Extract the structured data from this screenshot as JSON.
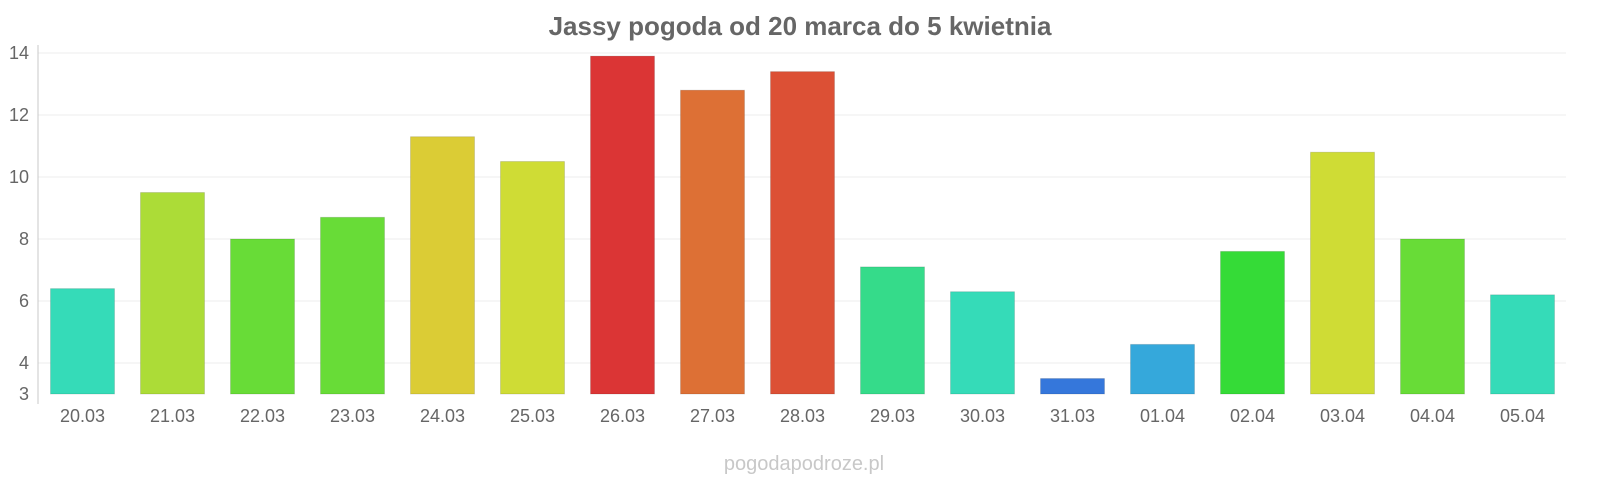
{
  "chart_data": {
    "type": "bar",
    "title": "Jassy pogoda od 20 marca do 5 kwietnia",
    "categories": [
      "20.03",
      "21.03",
      "22.03",
      "23.03",
      "24.03",
      "25.03",
      "26.03",
      "27.03",
      "28.03",
      "29.03",
      "30.03",
      "31.03",
      "01.04",
      "02.04",
      "03.04",
      "04.04",
      "05.04"
    ],
    "values": [
      6.4,
      9.5,
      8.0,
      8.7,
      11.3,
      10.5,
      13.9,
      12.8,
      13.4,
      7.1,
      6.3,
      3.5,
      4.6,
      7.6,
      10.8,
      8.0,
      6.2
    ],
    "colors": [
      "#35dbb8",
      "#acdc37",
      "#68dc37",
      "#68dc37",
      "#dbcc35",
      "#cfdc35",
      "#db3535",
      "#dd7035",
      "#dc5035",
      "#35db8a",
      "#35dbb8",
      "#3577db",
      "#35a8db",
      "#35db37",
      "#cfdc35",
      "#68dc37",
      "#35dbb8"
    ],
    "ylim": [
      3,
      14
    ],
    "yticks": [
      3,
      4,
      6,
      8,
      10,
      12,
      14
    ],
    "grid": true,
    "xlabel": "",
    "ylabel": ""
  },
  "watermark": "pogodapodroze.pl"
}
